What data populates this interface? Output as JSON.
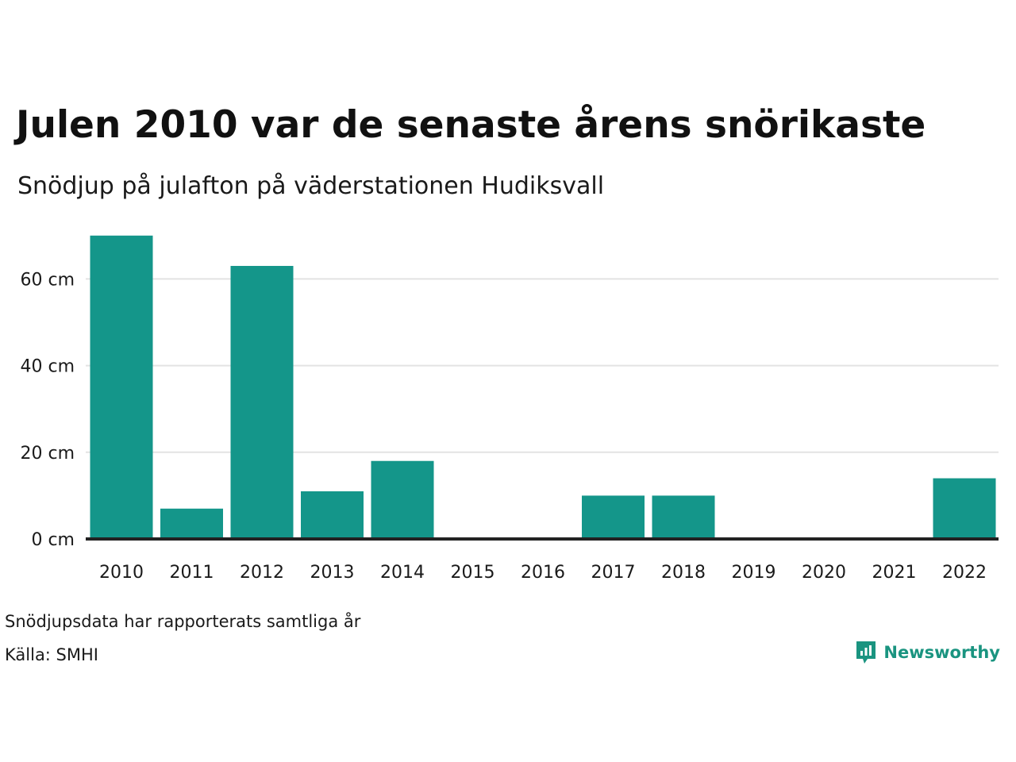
{
  "header": {
    "title": "Julen 2010 var de senaste årens snörikaste",
    "subtitle": "Snödjup på julafton på väderstationen Hudiksvall"
  },
  "footer": {
    "note": "Snödjupsdata har rapporterats samtliga år",
    "source": "Källa: SMHI",
    "brand": "Newsworthy"
  },
  "colors": {
    "bar": "#14968a",
    "grid": "#e3e3e3",
    "baseline": "#222222",
    "brand": "#1a9480"
  },
  "icons": {
    "logo": "newsworthy-logo-icon"
  },
  "chart_data": {
    "type": "bar",
    "categories": [
      "2010",
      "2011",
      "2012",
      "2013",
      "2014",
      "2015",
      "2016",
      "2017",
      "2018",
      "2019",
      "2020",
      "2021",
      "2022"
    ],
    "values": [
      70,
      7,
      63,
      11,
      18,
      0,
      0,
      10,
      10,
      0,
      0,
      0,
      14
    ],
    "unit": "cm",
    "yticks": [
      0,
      20,
      40,
      60
    ],
    "ytick_labels": [
      "0 cm",
      "20 cm",
      "40 cm",
      "60 cm"
    ],
    "ylim": [
      0,
      73
    ],
    "grid": true,
    "legend": "none"
  }
}
